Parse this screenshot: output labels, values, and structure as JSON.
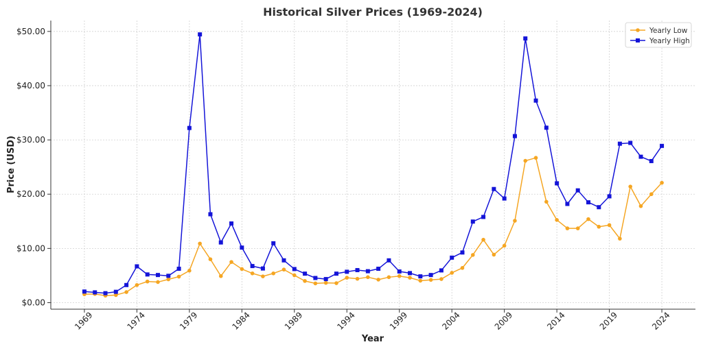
{
  "chart_data": {
    "type": "line",
    "title": "Historical Silver Prices (1969-2024)",
    "xlabel": "Year",
    "ylabel": "Price (USD)",
    "xlim": [
      1965.8,
      2027.2
    ],
    "ylim": [
      -1.2,
      52
    ],
    "x_ticks": [
      1969,
      1974,
      1979,
      1984,
      1989,
      1994,
      1999,
      2004,
      2009,
      2014,
      2019,
      2024
    ],
    "y_ticks": [
      0,
      10,
      20,
      30,
      40,
      50
    ],
    "y_tick_labels": [
      "$0.00",
      "$10.00",
      "$20.00",
      "$30.00",
      "$40.00",
      "$50.00"
    ],
    "grid": true,
    "legend_position": "top-right",
    "x": [
      1969,
      1970,
      1971,
      1972,
      1973,
      1974,
      1975,
      1976,
      1977,
      1978,
      1979,
      1980,
      1981,
      1982,
      1983,
      1984,
      1985,
      1986,
      1987,
      1988,
      1989,
      1990,
      1991,
      1992,
      1993,
      1994,
      1995,
      1996,
      1997,
      1998,
      1999,
      2000,
      2001,
      2002,
      2003,
      2004,
      2005,
      2006,
      2007,
      2008,
      2009,
      2010,
      2011,
      2012,
      2013,
      2014,
      2015,
      2016,
      2017,
      2018,
      2019,
      2020,
      2021,
      2022,
      2023,
      2024
    ],
    "series": [
      {
        "name": "Yearly Low",
        "color": "#f5a623",
        "marker": "circle",
        "values": [
          1.55,
          1.6,
          1.3,
          1.4,
          1.95,
          3.25,
          3.9,
          3.8,
          4.3,
          4.8,
          5.9,
          10.9,
          8.0,
          4.9,
          7.5,
          6.2,
          5.4,
          4.85,
          5.4,
          6.1,
          5.05,
          4.0,
          3.55,
          3.65,
          3.6,
          4.6,
          4.4,
          4.7,
          4.25,
          4.7,
          4.9,
          4.6,
          4.05,
          4.2,
          4.35,
          5.5,
          6.4,
          8.8,
          11.6,
          8.85,
          10.5,
          15.1,
          26.15,
          26.7,
          18.6,
          15.25,
          13.7,
          13.7,
          15.4,
          14.0,
          14.3,
          11.8,
          21.4,
          17.8,
          20.0,
          22.1
        ]
      },
      {
        "name": "Yearly High",
        "color": "#1414d8",
        "marker": "square",
        "values": [
          2.05,
          1.9,
          1.75,
          2.0,
          3.25,
          6.7,
          5.2,
          5.1,
          4.95,
          6.25,
          32.2,
          49.45,
          16.3,
          11.1,
          14.6,
          10.15,
          6.75,
          6.3,
          10.95,
          7.8,
          6.2,
          5.35,
          4.55,
          4.35,
          5.35,
          5.7,
          6.0,
          5.8,
          6.25,
          7.8,
          5.75,
          5.45,
          4.85,
          5.1,
          5.95,
          8.3,
          9.25,
          14.95,
          15.8,
          20.95,
          19.2,
          30.7,
          48.7,
          37.25,
          32.25,
          22.0,
          18.2,
          20.7,
          18.5,
          17.6,
          19.6,
          29.3,
          29.45,
          26.9,
          26.1,
          28.9
        ]
      }
    ]
  }
}
